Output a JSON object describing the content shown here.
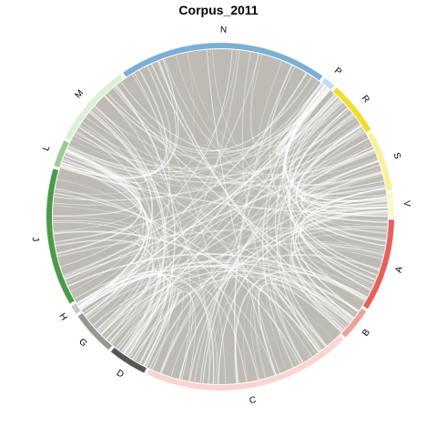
{
  "chart_data": {
    "type": "chord",
    "title": "Corpus_2011",
    "segments": [
      {
        "label": "N",
        "start": -34,
        "end": 36,
        "color": "#7bafd4"
      },
      {
        "label": "P",
        "start": 37,
        "end": 41,
        "color": "#c7dbef"
      },
      {
        "label": "R",
        "start": 42,
        "end": 60,
        "color": "#f0dc33"
      },
      {
        "label": "S",
        "start": 61,
        "end": 81,
        "color": "#fbf09a"
      },
      {
        "label": "V",
        "start": 82,
        "end": 90,
        "color": "#fef6c8"
      },
      {
        "label": "A",
        "start": 91,
        "end": 122,
        "color": "#e8605a"
      },
      {
        "label": "B",
        "start": 123,
        "end": 134,
        "color": "#f2a09a"
      },
      {
        "label": "C",
        "start": 135,
        "end": 205,
        "color": "#fad4d0"
      },
      {
        "label": "D",
        "start": 206,
        "end": 219,
        "color": "#555555"
      },
      {
        "label": "G",
        "start": 220,
        "end": 235,
        "color": "#969696"
      },
      {
        "label": "H",
        "start": 236,
        "end": 239,
        "color": "#c8c8c8"
      },
      {
        "label": "J",
        "start": 240,
        "end": 286,
        "color": "#4a9a4a"
      },
      {
        "label": "L",
        "start": 287,
        "end": 296,
        "color": "#9cca96"
      },
      {
        "label": "M",
        "start": 297,
        "end": 325,
        "color": "#dcf0d4"
      }
    ],
    "chord_color": "#bdbbb3",
    "chord_count": 240
  }
}
